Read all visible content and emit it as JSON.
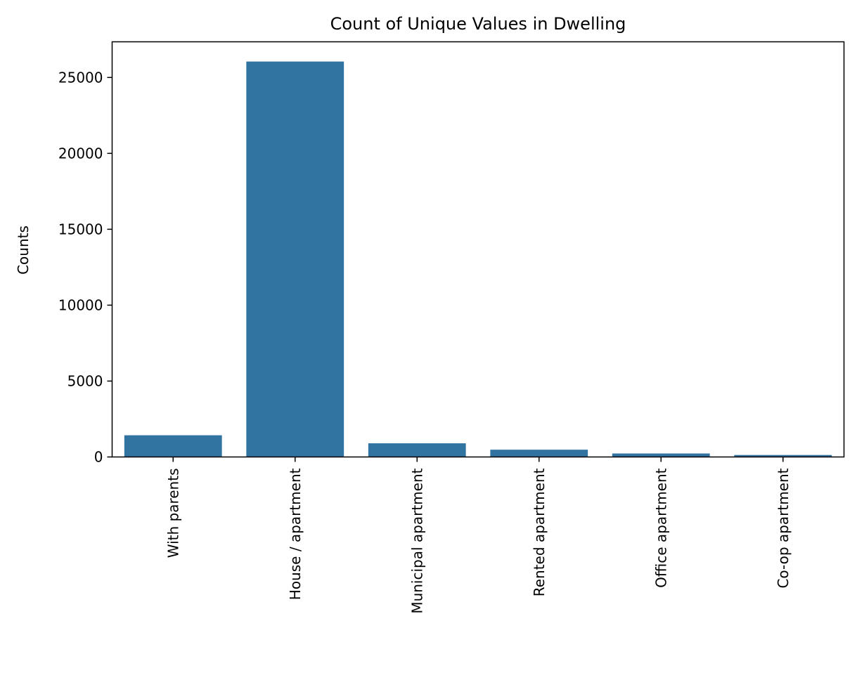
{
  "chart_data": {
    "type": "bar",
    "title": "Count of Unique Values in Dwelling",
    "xlabel": "",
    "ylabel": "Counts",
    "categories": [
      "With parents",
      "House / apartment",
      "Municipal apartment",
      "Rented apartment",
      "Office apartment",
      "Co-op apartment"
    ],
    "values": [
      1430,
      26050,
      900,
      480,
      230,
      130
    ],
    "ylim": [
      0,
      27350
    ],
    "yticks": [
      0,
      5000,
      10000,
      15000,
      20000,
      25000
    ],
    "ytick_labels": [
      "0",
      "5000",
      "10000",
      "15000",
      "20000",
      "25000"
    ],
    "grid": false,
    "legend": "none",
    "bar_color": "#3274a1"
  }
}
